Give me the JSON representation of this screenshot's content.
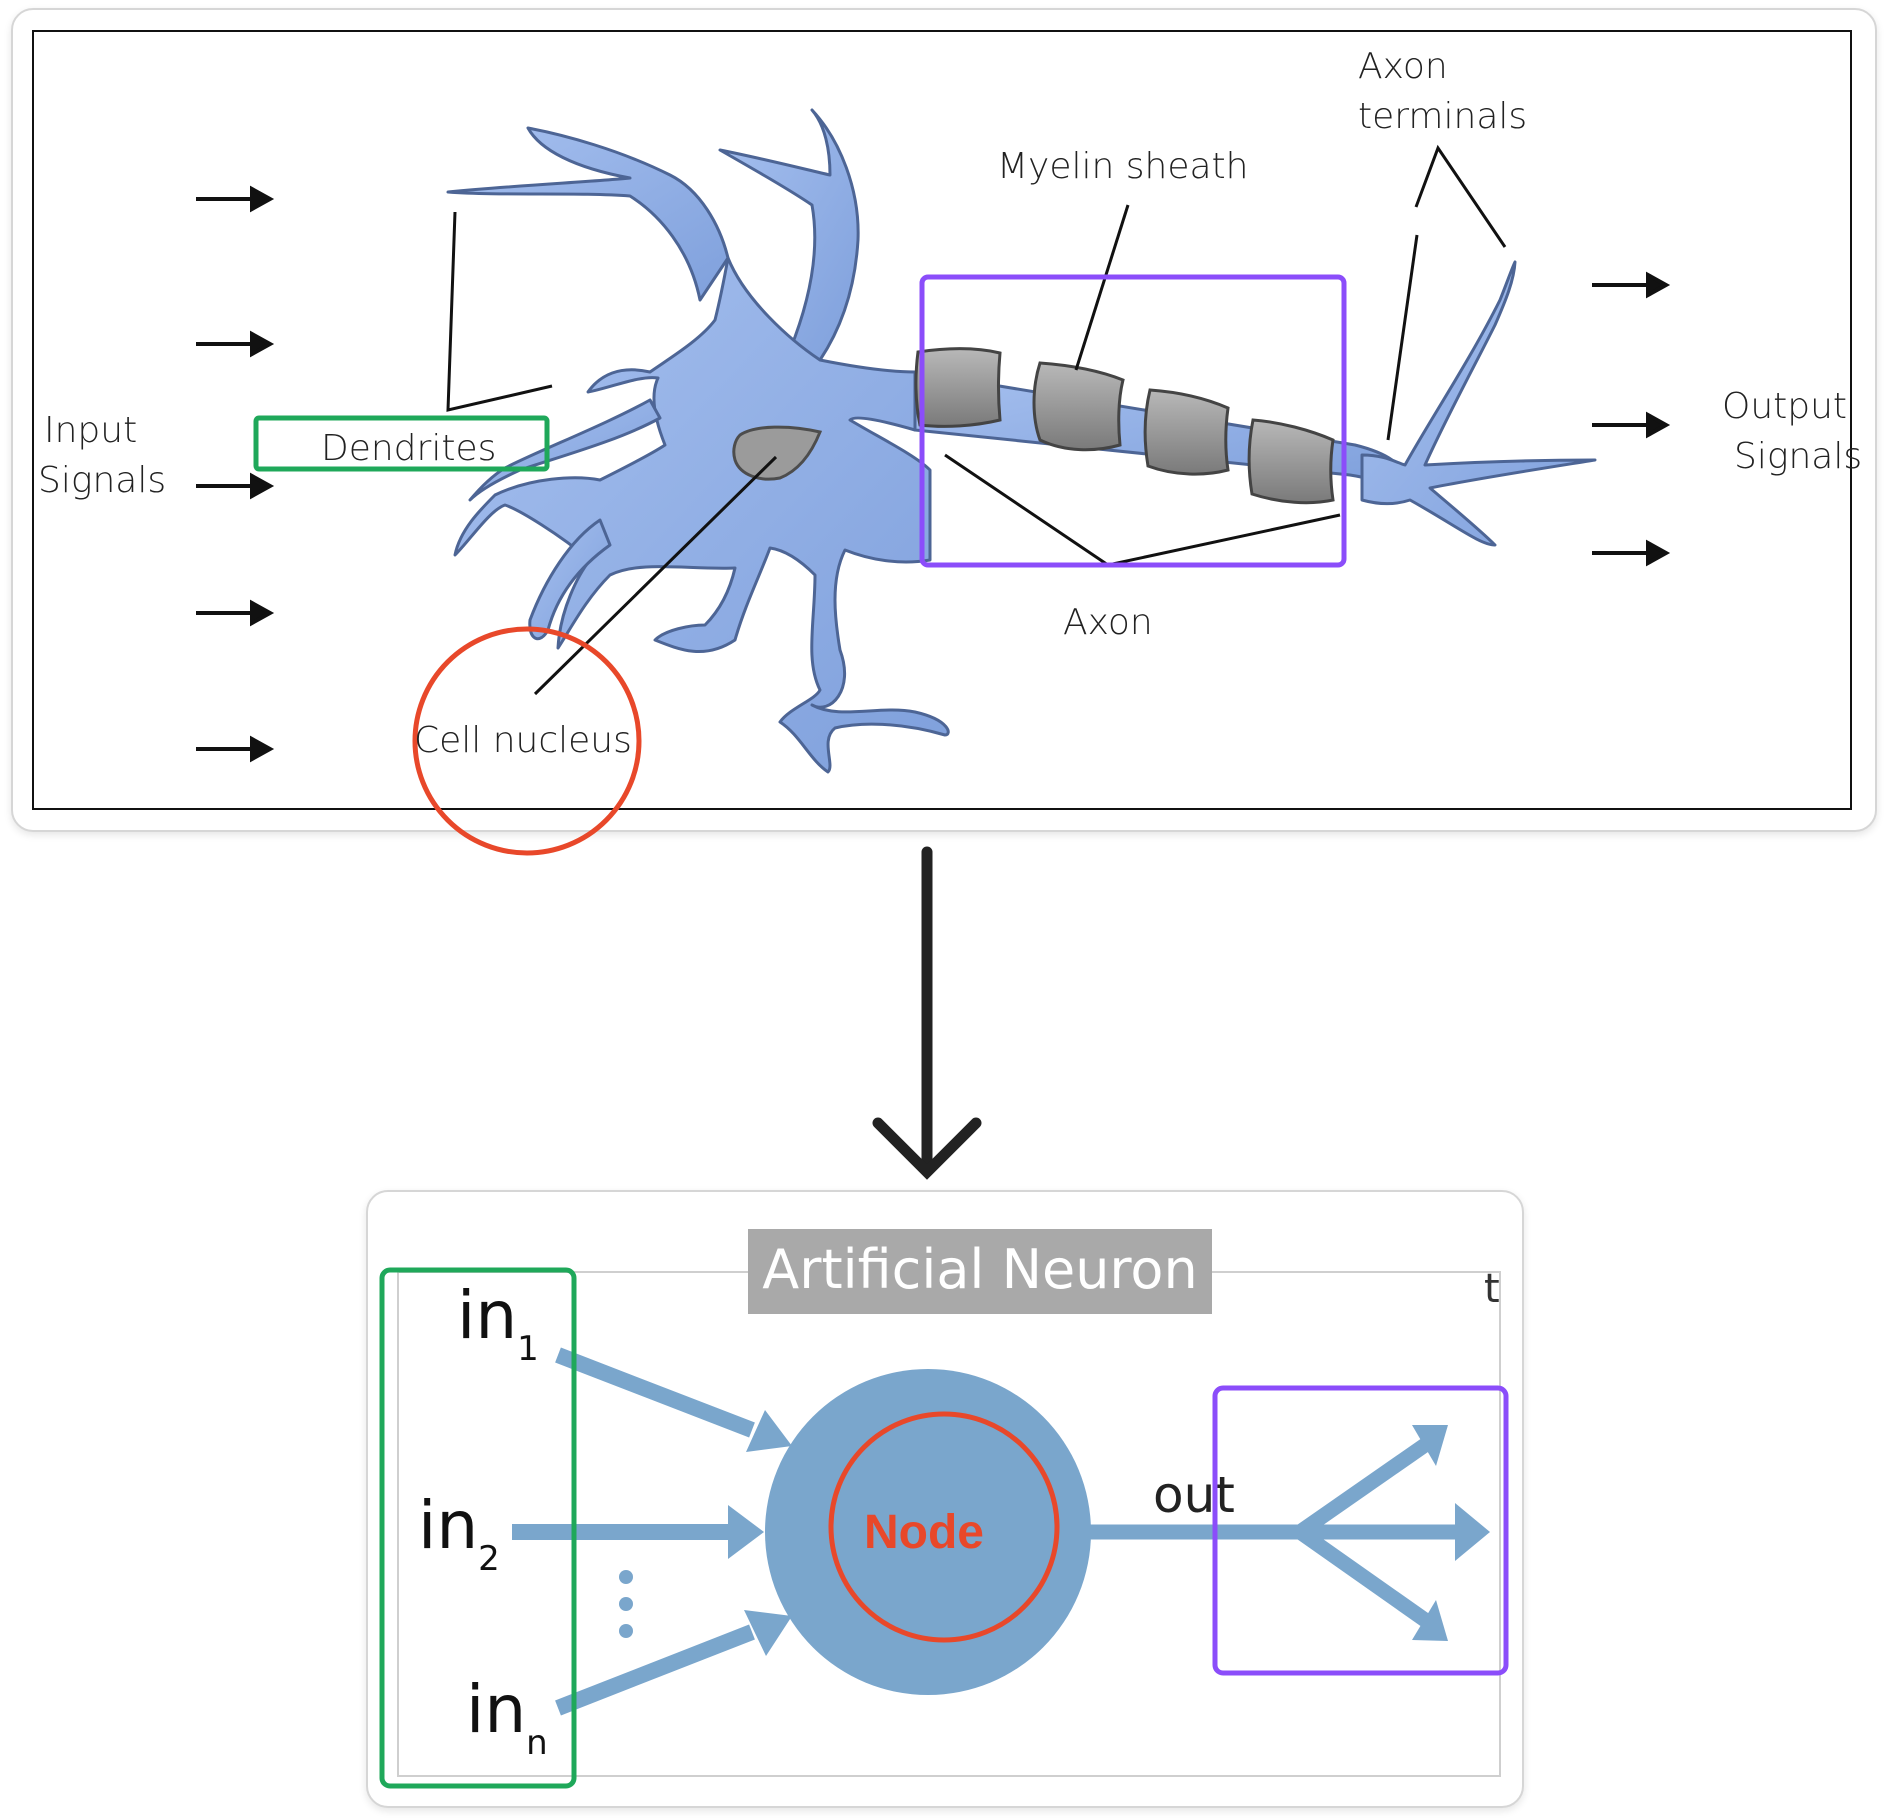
{
  "biological_neuron": {
    "input_label_line1": "Input",
    "input_label_line2": "Signals",
    "output_label_line1": "Output",
    "output_label_line2": "Signals",
    "dendrites_label": "Dendrites",
    "cell_nucleus_label": "Cell nucleus",
    "myelin_sheath_label": "Myelin sheath",
    "axon_label": "Axon",
    "axon_terminals_line1": "Axon",
    "axon_terminals_line2": "terminals"
  },
  "artificial_neuron": {
    "title": "Artificial Neuron",
    "input_1": "in",
    "input_1_sub": "1",
    "input_2": "in",
    "input_2_sub": "2",
    "input_n": "in",
    "input_n_sub": "n",
    "node_label": "Node",
    "output_label": "out",
    "corner_glyph": "t"
  },
  "colors": {
    "neuron_fill": "#93b1e6",
    "neuron_stroke": "#4d6595",
    "myelin_fill": "#8f8f8f",
    "ann_blue": "#7aa6cc",
    "title_bg": "#a9a9a9",
    "highlight_green": "#1fa85a",
    "highlight_red": "#e8482a",
    "highlight_purple": "#8b4dfa"
  }
}
